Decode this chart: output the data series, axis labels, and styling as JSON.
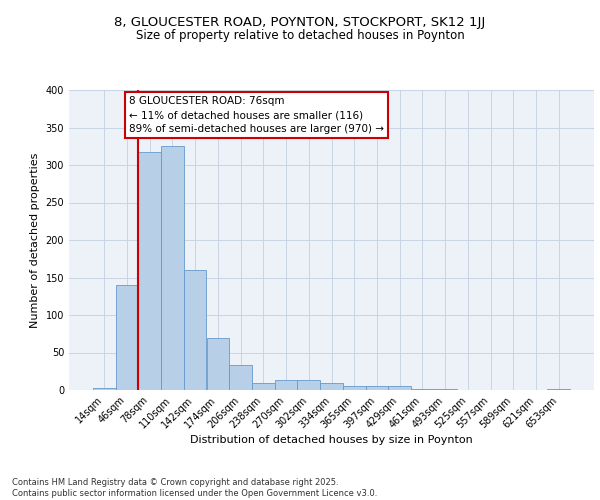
{
  "title1": "8, GLOUCESTER ROAD, POYNTON, STOCKPORT, SK12 1JJ",
  "title2": "Size of property relative to detached houses in Poynton",
  "xlabel": "Distribution of detached houses by size in Poynton",
  "ylabel": "Number of detached properties",
  "bar_color": "#b8cfe8",
  "bar_edge_color": "#6699cc",
  "grid_color": "#c8d4e4",
  "background_color": "#edf1f8",
  "bin_labels": [
    "14sqm",
    "46sqm",
    "78sqm",
    "110sqm",
    "142sqm",
    "174sqm",
    "206sqm",
    "238sqm",
    "270sqm",
    "302sqm",
    "334sqm",
    "365sqm",
    "397sqm",
    "429sqm",
    "461sqm",
    "493sqm",
    "525sqm",
    "557sqm",
    "589sqm",
    "621sqm",
    "653sqm"
  ],
  "bar_heights": [
    3,
    140,
    318,
    325,
    160,
    70,
    34,
    10,
    14,
    14,
    10,
    6,
    5,
    5,
    1,
    2,
    0,
    0,
    0,
    0,
    2
  ],
  "red_line_bin_index": 2,
  "annotation_text": "8 GLOUCESTER ROAD: 76sqm\n← 11% of detached houses are smaller (116)\n89% of semi-detached houses are larger (970) →",
  "annotation_box_facecolor": "#ffffff",
  "annotation_box_edgecolor": "#cc0000",
  "red_line_color": "#cc0000",
  "footer_text": "Contains HM Land Registry data © Crown copyright and database right 2025.\nContains public sector information licensed under the Open Government Licence v3.0.",
  "ylim_max": 400,
  "yticks": [
    0,
    50,
    100,
    150,
    200,
    250,
    300,
    350,
    400
  ],
  "title_fontsize": 9.5,
  "subtitle_fontsize": 8.5,
  "axis_label_fontsize": 8,
  "tick_fontsize": 7,
  "annotation_fontsize": 7.5,
  "footer_fontsize": 6
}
